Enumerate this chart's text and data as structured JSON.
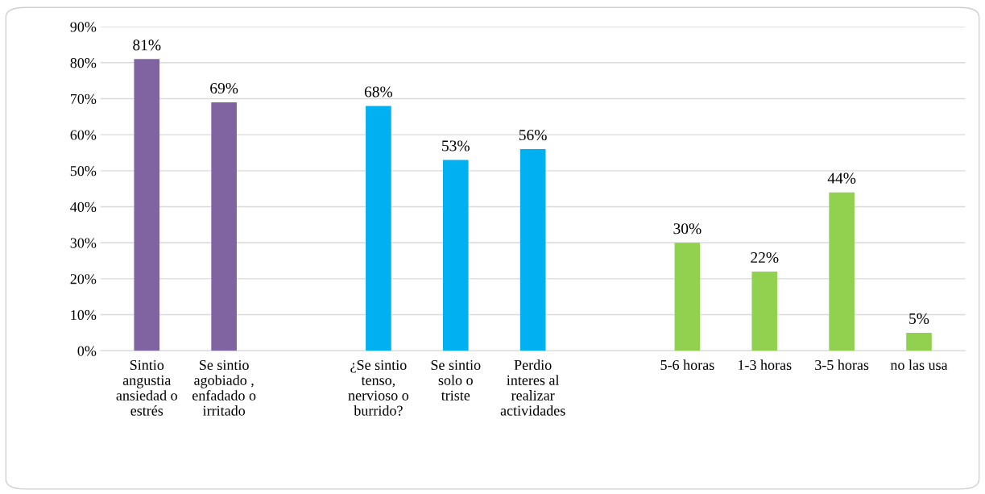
{
  "chart_data": {
    "type": "bar",
    "categories": [
      "Sintio\nangustia\nansiedad o\nestrés",
      "Se sintio\nagobiado ,\nenfadado o\nirritado",
      null,
      "¿Se sintio\ntenso,\nnervioso o\nburrido?",
      "Se sintio\nsolo o\ntriste",
      "Perdio\ninteres al\nrealizar\nactividades",
      null,
      "5-6 horas",
      "1-3 horas",
      "3-5 horas",
      "no las usa"
    ],
    "values": [
      81,
      69,
      null,
      68,
      53,
      56,
      null,
      30,
      22,
      44,
      5
    ],
    "colors": [
      "#8064a2",
      "#8064a2",
      null,
      "#00b0f0",
      "#00b0f0",
      "#00b0f0",
      null,
      "#92d050",
      "#92d050",
      "#92d050",
      "#92d050"
    ],
    "value_labels": [
      "81%",
      "69%",
      null,
      "68%",
      "53%",
      "56%",
      null,
      "30%",
      "22%",
      "44%",
      "5%"
    ],
    "ylim": [
      0,
      90
    ],
    "yticks": [
      {
        "value": 0,
        "label": "0%"
      },
      {
        "value": 10,
        "label": "10%"
      },
      {
        "value": 20,
        "label": "20%"
      },
      {
        "value": 30,
        "label": "30%"
      },
      {
        "value": 40,
        "label": "40%"
      },
      {
        "value": 50,
        "label": "50%"
      },
      {
        "value": 60,
        "label": "60%"
      },
      {
        "value": 70,
        "label": "70%"
      },
      {
        "value": 80,
        "label": "80%"
      },
      {
        "value": 90,
        "label": "90%"
      }
    ],
    "grid": "y"
  }
}
